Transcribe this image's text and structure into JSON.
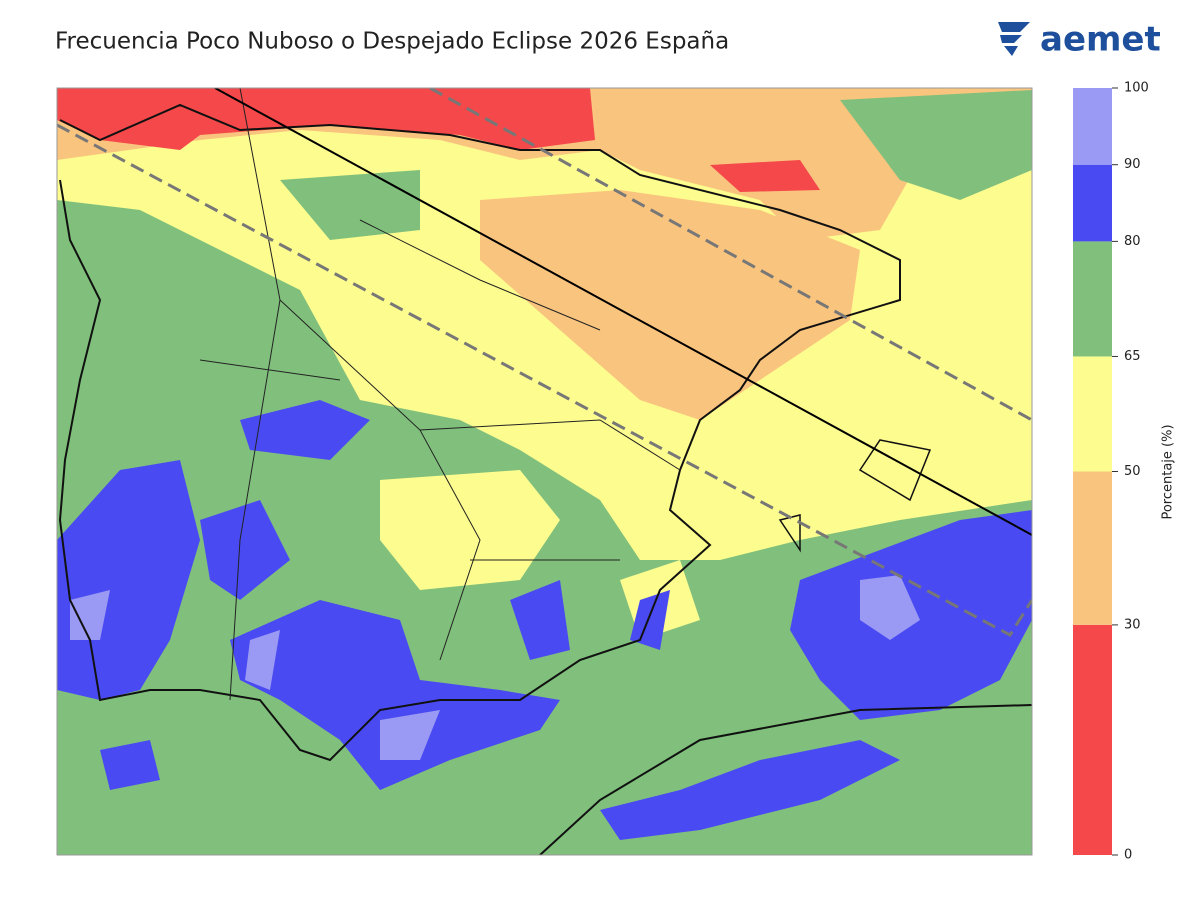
{
  "title": "Frecuencia Poco Nuboso o Despejado Eclipse 2026 España",
  "logo": "aemet",
  "colorbar": {
    "label": "Porcentaje (%)",
    "ylim": [
      0,
      100
    ],
    "yticks": [
      0,
      30,
      50,
      65,
      80,
      90,
      100
    ],
    "colors": [
      "#f5484a",
      "#f9c47e",
      "#fdfc8f",
      "#80c07c",
      "#4a4af2",
      "#9a9af4"
    ]
  }
}
